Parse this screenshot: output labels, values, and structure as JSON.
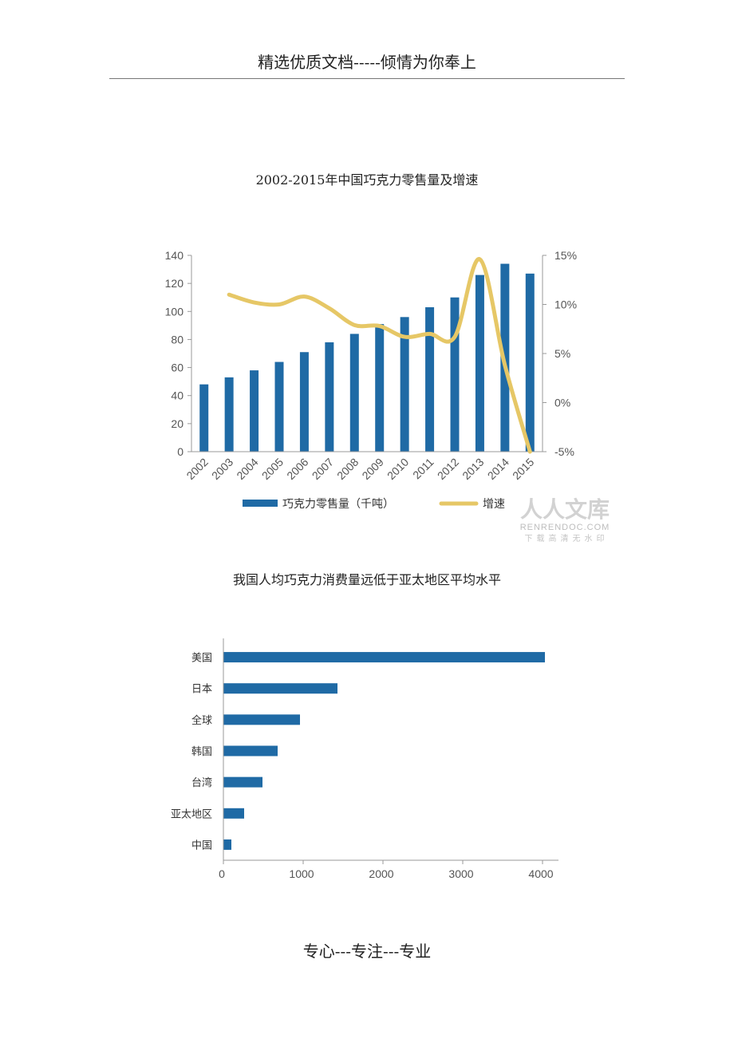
{
  "header": {
    "text": "精选优质文档-----倾情为你奉上"
  },
  "footer": {
    "text": "专心---专注---专业"
  },
  "watermark": {
    "main": "人人文库",
    "domain": "RENRENDOC.COM",
    "tagline": "下载高清无水印"
  },
  "colors": {
    "bar": "#1f6aa5",
    "line": "#e6c766",
    "axis": "#999999"
  },
  "charts": [
    {
      "title": "2002-2015年中国巧克力零售量及增速",
      "chart_data": {
        "type": "bar",
        "categories": [
          "2002",
          "2003",
          "2004",
          "2005",
          "2006",
          "2007",
          "2008",
          "2009",
          "2010",
          "2011",
          "2012",
          "2013",
          "2014",
          "2015"
        ],
        "series": [
          {
            "name": "巧克力零售量（千吨）",
            "kind": "bar",
            "axis": "left",
            "values": [
              48,
              53,
              58,
              64,
              71,
              78,
              84,
              91,
              96,
              103,
              110,
              126,
              134,
              127
            ]
          },
          {
            "name": "增速",
            "kind": "line",
            "axis": "right",
            "unit": "%",
            "values": [
              null,
              11.0,
              10.2,
              10.0,
              10.8,
              9.6,
              7.9,
              7.8,
              6.7,
              7.0,
              6.7,
              14.6,
              3.8,
              -5.0
            ]
          }
        ],
        "ylim": [
          0,
          140
        ],
        "yticks": [
          0,
          20,
          40,
          60,
          80,
          100,
          120,
          140
        ],
        "y2lim": [
          -5,
          15
        ],
        "y2ticks": [
          "15%",
          "10%",
          "5%",
          "0%",
          "-5%"
        ],
        "y2tick_values": [
          15,
          10,
          5,
          0,
          -5
        ],
        "legend": "bottom",
        "grid": false
      }
    },
    {
      "title": "我国人均巧克力消费量远低于亚太地区平均水平",
      "chart_data": {
        "type": "bar",
        "orientation": "horizontal",
        "categories": [
          "美国",
          "日本",
          "全球",
          "韩国",
          "台湾",
          "亚太地区",
          "中国"
        ],
        "values": [
          4030,
          1430,
          960,
          680,
          490,
          260,
          100
        ],
        "xlim": [
          0,
          4200
        ],
        "xticks": [
          0,
          1000,
          2000,
          3000,
          4000
        ],
        "grid": false
      }
    }
  ]
}
